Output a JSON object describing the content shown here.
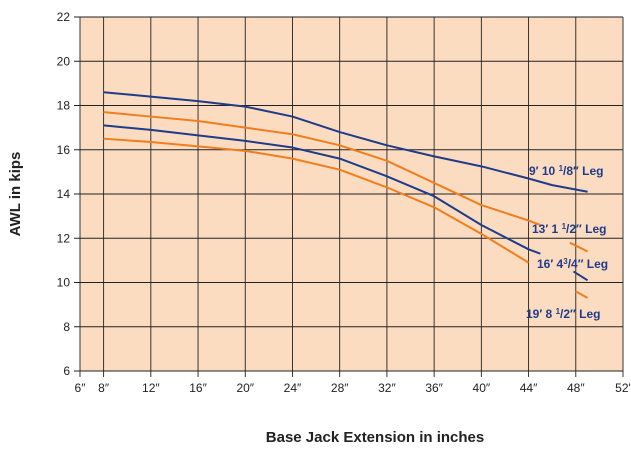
{
  "chart_data": {
    "type": "line",
    "title": "",
    "xlabel": "Base Jack Extension in inches",
    "ylabel": "AWL in kips",
    "xlim": [
      6,
      52
    ],
    "ylim": [
      6,
      22
    ],
    "x_ticks": [
      6,
      8,
      12,
      16,
      20,
      24,
      28,
      32,
      36,
      40,
      44,
      48,
      52
    ],
    "x_tick_labels": [
      "6″",
      "8″",
      "12″",
      "16″",
      "20″",
      "24″",
      "28″",
      "32″",
      "36″",
      "40″",
      "44″",
      "48″",
      "52'"
    ],
    "y_ticks": [
      6,
      8,
      10,
      12,
      14,
      16,
      18,
      20,
      22
    ],
    "y_tick_labels": [
      "6",
      "8",
      "10",
      "12",
      "14",
      "16",
      "18",
      "20",
      "22"
    ],
    "grid": true,
    "legend": "none",
    "colors": {
      "plot_background": "#fbdcc0",
      "grid": "#222222",
      "blue": "#1f3b8a",
      "orange": "#f07d1e"
    },
    "series": [
      {
        "name": "9′ 10 1/8″ Leg",
        "color": "#1f3b8a",
        "points": [
          [
            8,
            18.6
          ],
          [
            12,
            18.4
          ],
          [
            16,
            18.2
          ],
          [
            20,
            17.95
          ],
          [
            24,
            17.5
          ],
          [
            28,
            16.8
          ],
          [
            32,
            16.2
          ],
          [
            36,
            15.7
          ],
          [
            40,
            15.25
          ],
          [
            44,
            14.7
          ],
          [
            46,
            14.4
          ],
          [
            49,
            14.1
          ]
        ]
      },
      {
        "name": "13′ 1 1/2″ Leg",
        "color": "#f07d1e",
        "points": [
          [
            8,
            17.7
          ],
          [
            12,
            17.5
          ],
          [
            16,
            17.3
          ],
          [
            20,
            17.0
          ],
          [
            24,
            16.7
          ],
          [
            28,
            16.2
          ],
          [
            32,
            15.5
          ],
          [
            36,
            14.5
          ],
          [
            40,
            13.5
          ],
          [
            44,
            12.8
          ],
          [
            45,
            12.6
          ],
          [
            47.5,
            11.8
          ],
          [
            49,
            11.4
          ]
        ]
      },
      {
        "name": "16′ 4 3/4″ Leg",
        "color": "#1f3b8a",
        "points": [
          [
            8,
            17.1
          ],
          [
            12,
            16.9
          ],
          [
            16,
            16.65
          ],
          [
            20,
            16.4
          ],
          [
            24,
            16.1
          ],
          [
            28,
            15.6
          ],
          [
            32,
            14.8
          ],
          [
            36,
            13.9
          ],
          [
            40,
            12.6
          ],
          [
            44,
            11.5
          ],
          [
            45,
            11.3
          ],
          [
            47.8,
            10.5
          ],
          [
            49,
            10.1
          ]
        ]
      },
      {
        "name": "19′ 8 1/2″ Leg",
        "color": "#f07d1e",
        "points": [
          [
            8,
            16.5
          ],
          [
            12,
            16.35
          ],
          [
            16,
            16.15
          ],
          [
            20,
            15.95
          ],
          [
            24,
            15.6
          ],
          [
            28,
            15.1
          ],
          [
            32,
            14.3
          ],
          [
            36,
            13.4
          ],
          [
            40,
            12.2
          ],
          [
            44,
            10.9
          ],
          [
            48,
            9.6
          ],
          [
            49,
            9.3
          ]
        ]
      }
    ],
    "annotations": [
      {
        "id": "label-9ft",
        "whole": "9′ 10 ",
        "sup": "1",
        "sub": "/8″",
        "rest": " Leg",
        "color": "#1f3b8a"
      },
      {
        "id": "label-13ft",
        "whole": "13′ 1 ",
        "sup": "1",
        "sub": "/2″",
        "rest": " Leg",
        "color": "#1f3b8a"
      },
      {
        "id": "label-16ft",
        "whole": "16′ 4",
        "sup": "3",
        "sub": "/4″",
        "rest": " Leg",
        "color": "#1f3b8a"
      },
      {
        "id": "label-19ft",
        "whole": "19′ 8 ",
        "sup": "1",
        "sub": "/2″",
        "rest": " Leg",
        "color": "#1f3b8a"
      }
    ]
  }
}
